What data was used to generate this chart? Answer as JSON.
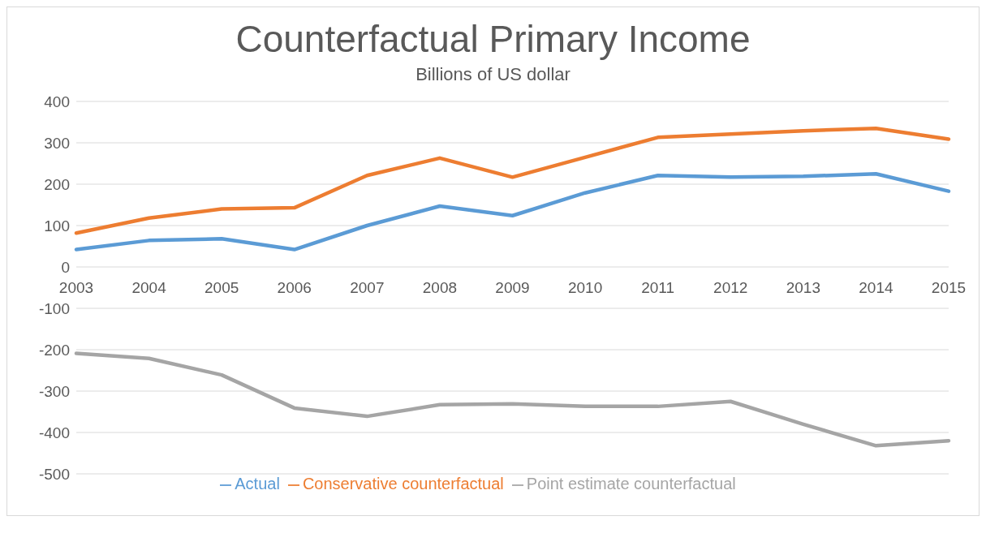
{
  "chart_data": {
    "type": "line",
    "title": "Counterfactual Primary Income",
    "subtitle": "Billions of US dollar",
    "categories": [
      "2003",
      "2004",
      "2005",
      "2006",
      "2007",
      "2008",
      "2009",
      "2010",
      "2011",
      "2012",
      "2013",
      "2014",
      "2015"
    ],
    "series": [
      {
        "name": "Actual",
        "color": "#5b9bd5",
        "values": [
          42,
          64,
          68,
          42,
          100,
          147,
          124,
          179,
          221,
          217,
          219,
          225,
          183
        ]
      },
      {
        "name": "Conservative counterfactual",
        "color": "#ed7d31",
        "values": [
          82,
          118,
          140,
          143,
          221,
          263,
          217,
          265,
          313,
          321,
          329,
          335,
          309
        ]
      },
      {
        "name": "Point estimate counterfactual",
        "color": "#a5a5a5",
        "values": [
          -209,
          -221,
          -261,
          -341,
          -361,
          -333,
          -331,
          -337,
          -337,
          -325,
          -380,
          -432,
          -420
        ]
      }
    ],
    "ylim": [
      -500,
      400
    ],
    "yticks": [
      -500,
      -400,
      -300,
      -200,
      -100,
      0,
      100,
      200,
      300,
      400
    ],
    "grid": "y",
    "legend": "bottom",
    "marker": "none",
    "line_style": "solid"
  }
}
